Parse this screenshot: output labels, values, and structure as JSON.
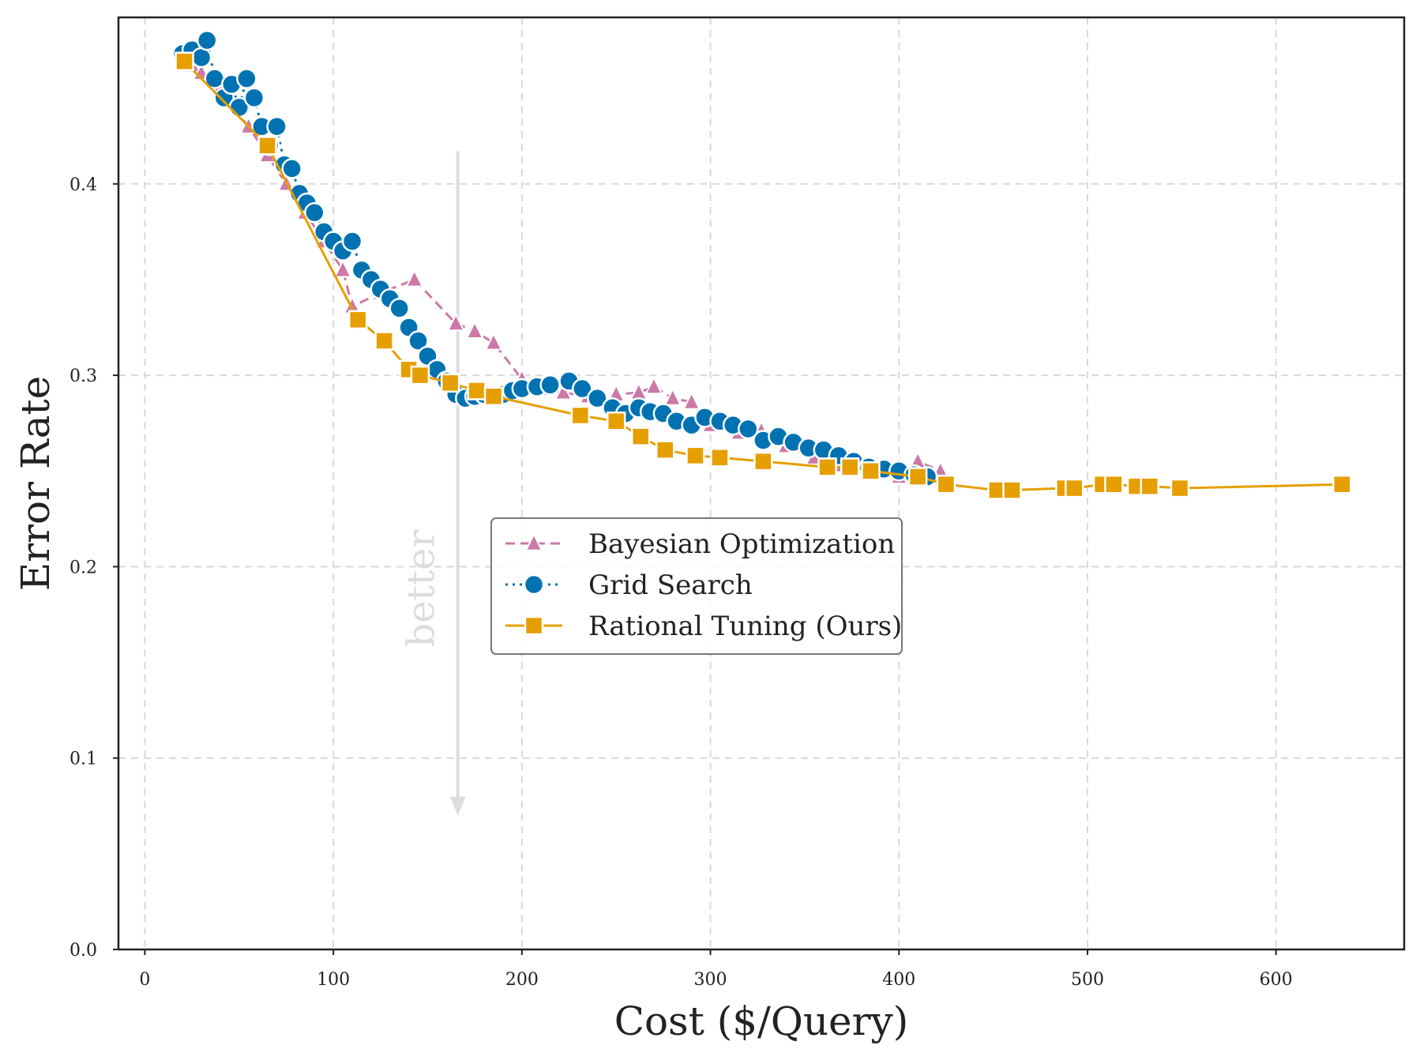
{
  "chart_data": {
    "type": "line",
    "title": "",
    "xlabel": "Cost ($/Query)",
    "ylabel": "Error Rate",
    "xlim": [
      -14,
      668
    ],
    "ylim": [
      0.0,
      0.487
    ],
    "xticks": [
      0,
      100,
      200,
      300,
      400,
      500,
      600
    ],
    "yticks": [
      0.0,
      0.1,
      0.2,
      0.3,
      0.4
    ],
    "xtick_labels": [
      "0",
      "100",
      "200",
      "300",
      "400",
      "500",
      "600"
    ],
    "ytick_labels": [
      "0.0",
      "0.1",
      "0.2",
      "0.3",
      "0.4"
    ],
    "grid": true,
    "legend_position": "center",
    "annotation": {
      "text": "better",
      "arrow_x": 166,
      "arrow_from_y": 0.417,
      "arrow_to_y": 0.07
    },
    "series": [
      {
        "name": "Bayesian Optimization",
        "color": "#cc79a7",
        "line_style": "dashed",
        "marker": "triangle",
        "x": [
          20,
          25,
          30,
          40,
          55,
          65,
          75,
          85,
          95,
          105,
          110,
          125,
          143,
          165,
          175,
          185,
          200,
          210,
          222,
          235,
          250,
          262,
          270,
          280,
          290,
          300,
          315,
          327,
          340,
          355,
          370,
          385,
          400,
          410,
          422
        ],
        "y": [
          0.467,
          0.462,
          0.458,
          0.45,
          0.43,
          0.415,
          0.4,
          0.385,
          0.37,
          0.355,
          0.336,
          0.343,
          0.35,
          0.327,
          0.323,
          0.317,
          0.298,
          0.293,
          0.291,
          0.289,
          0.29,
          0.291,
          0.294,
          0.288,
          0.286,
          0.274,
          0.27,
          0.271,
          0.263,
          0.257,
          0.253,
          0.249,
          0.247,
          0.255,
          0.25
        ]
      },
      {
        "name": "Grid Search",
        "color": "#0072b2",
        "line_style": "dotted",
        "marker": "circle",
        "x": [
          20,
          25,
          30,
          33,
          37,
          42,
          46,
          50,
          54,
          58,
          62,
          66,
          70,
          74,
          78,
          82,
          86,
          90,
          95,
          100,
          105,
          110,
          115,
          120,
          125,
          130,
          135,
          140,
          145,
          150,
          155,
          160,
          165,
          170,
          175,
          180,
          185,
          190,
          195,
          200,
          208,
          215,
          225,
          232,
          240,
          248,
          255,
          262,
          268,
          275,
          282,
          290,
          297,
          305,
          312,
          320,
          328,
          336,
          344,
          352,
          360,
          368,
          376,
          384,
          392,
          400,
          408,
          415
        ],
        "y": [
          0.468,
          0.47,
          0.466,
          0.475,
          0.455,
          0.445,
          0.452,
          0.44,
          0.455,
          0.445,
          0.43,
          0.42,
          0.43,
          0.41,
          0.408,
          0.395,
          0.39,
          0.385,
          0.375,
          0.37,
          0.365,
          0.37,
          0.355,
          0.35,
          0.345,
          0.34,
          0.335,
          0.325,
          0.318,
          0.31,
          0.303,
          0.297,
          0.29,
          0.288,
          0.289,
          0.29,
          0.289,
          0.29,
          0.292,
          0.293,
          0.294,
          0.295,
          0.297,
          0.293,
          0.288,
          0.283,
          0.28,
          0.283,
          0.281,
          0.28,
          0.276,
          0.274,
          0.278,
          0.276,
          0.274,
          0.272,
          0.266,
          0.268,
          0.265,
          0.262,
          0.261,
          0.258,
          0.255,
          0.252,
          0.251,
          0.25,
          0.248,
          0.247
        ]
      },
      {
        "name": "Rational Tuning (Ours)",
        "color": "#e69f00",
        "line_style": "solid",
        "marker": "square",
        "x": [
          21,
          65,
          113,
          127,
          140,
          146,
          162,
          176,
          185,
          231,
          250,
          263,
          276,
          292,
          305,
          328,
          362,
          374,
          385,
          410,
          425,
          452,
          460,
          488,
          493,
          508,
          514,
          526,
          533,
          549,
          635
        ],
        "y": [
          0.464,
          0.42,
          0.329,
          0.318,
          0.303,
          0.3,
          0.296,
          0.292,
          0.289,
          0.279,
          0.276,
          0.268,
          0.261,
          0.258,
          0.257,
          0.255,
          0.252,
          0.252,
          0.25,
          0.247,
          0.243,
          0.24,
          0.24,
          0.241,
          0.241,
          0.243,
          0.243,
          0.242,
          0.242,
          0.241,
          0.243
        ]
      }
    ]
  }
}
